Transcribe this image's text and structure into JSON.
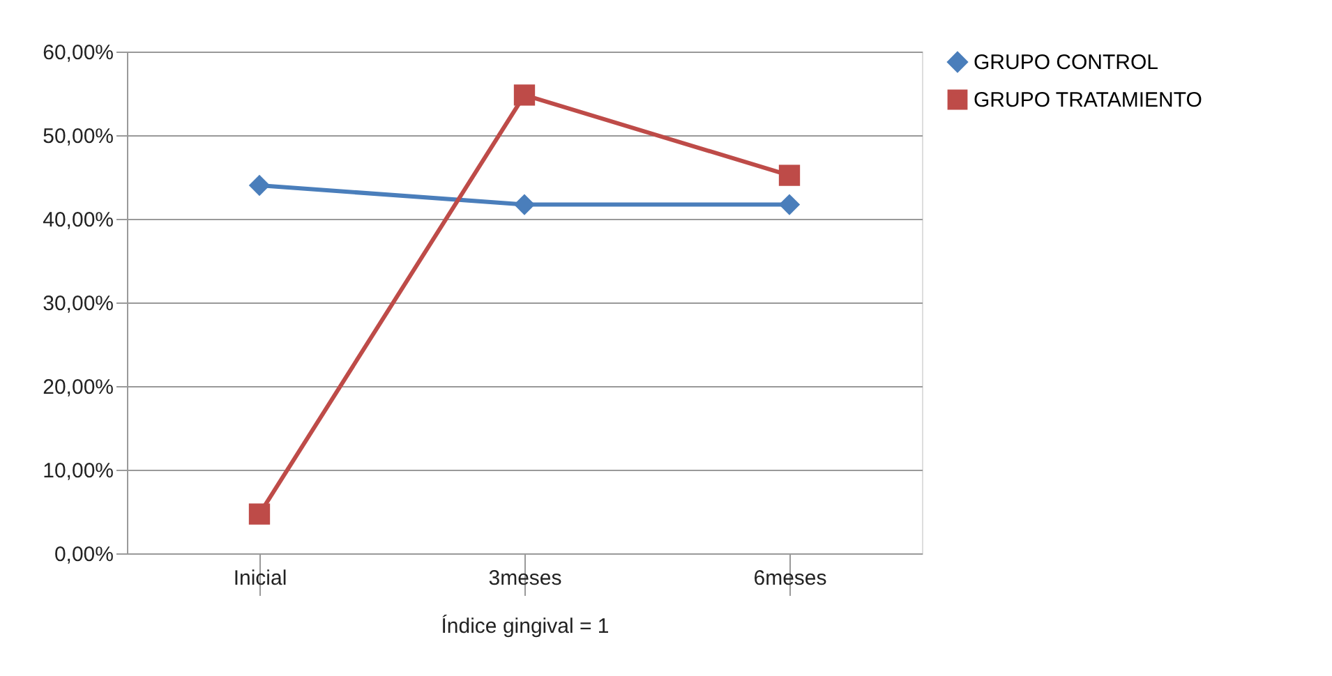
{
  "chart_data": {
    "type": "line",
    "xlabel": "Índice gingival = 1",
    "categories": [
      "Inicial",
      "3meses",
      "6meses"
    ],
    "series": [
      {
        "name": "GRUPO CONTROL",
        "color": "#4a7ebb",
        "marker": "diamond",
        "values": [
          44.0,
          41.7,
          41.7
        ]
      },
      {
        "name": "GRUPO TRATAMIENTO",
        "color": "#be4b48",
        "marker": "square",
        "values": [
          4.7,
          54.8,
          45.2
        ]
      }
    ],
    "ylim": [
      0,
      60
    ],
    "yticks": [
      {
        "value": 0,
        "label": "0,00%"
      },
      {
        "value": 10,
        "label": "10,00%"
      },
      {
        "value": 20,
        "label": "20,00%"
      },
      {
        "value": 30,
        "label": "30,00%"
      },
      {
        "value": 40,
        "label": "40,00%"
      },
      {
        "value": 50,
        "label": "50,00%"
      },
      {
        "value": 60,
        "label": "60,00%"
      }
    ],
    "grid": "y",
    "legend": "right",
    "line_style": "solid"
  }
}
